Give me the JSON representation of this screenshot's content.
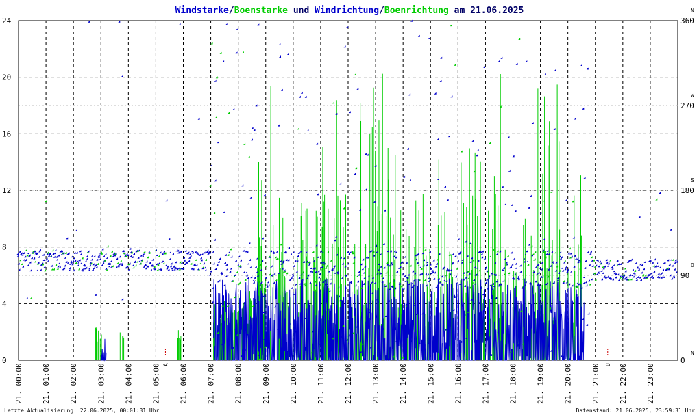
{
  "title": {
    "part1": "Windstarke",
    "sep1": "/",
    "part2": "Boenstarke",
    "part3": " und ",
    "part4": "Windrichtung",
    "sep2": "/",
    "part5": "Boenrichtung",
    "part6": " am 21.06.2025"
  },
  "colors": {
    "windstarke": "#0000cc",
    "boenstarke": "#00cc00",
    "windrichtung": "#0000cc",
    "boenrichtung": "#00cc00",
    "title_dark": "#000066",
    "marker_red": "#cc0000"
  },
  "footer": {
    "left": "Letzte Aktualisierung: 22.06.2025, 00:01:31 Uhr",
    "right": "Datenstand: 21.06.2025, 23:59:31 Uhr"
  },
  "chart_data": {
    "type": "scatter",
    "y_left_ticks": [
      "24",
      "20",
      "16",
      "12",
      "8",
      "4",
      "0"
    ],
    "y_left_range": [
      0,
      24
    ],
    "y_right_range": [
      0,
      360
    ],
    "y_right_ticks": [
      {
        "value": 360,
        "label": "360",
        "dir": "N"
      },
      {
        "value": 270,
        "label": "270",
        "dir": "W"
      },
      {
        "value": 180,
        "label": "180",
        "dir": "S"
      },
      {
        "value": 90,
        "label": "90",
        "dir": "O"
      },
      {
        "value": 0,
        "label": "0",
        "dir": "N"
      }
    ],
    "x_range_hours": [
      0,
      24
    ],
    "x_tick_labels": [
      "21. 00:00",
      "21. 01:00",
      "21. 02:00",
      "21. 03:00",
      "21. 04:00",
      "21. 05:00",
      "21. 06:00",
      "21. 07:00",
      "21. 08:00",
      "21. 09:00",
      "21. 10:00",
      "21. 11:00",
      "21. 12:00",
      "21. 13:00",
      "21. 14:00",
      "21. 15:00",
      "21. 16:00",
      "21. 17:00",
      "21. 18:00",
      "21. 19:00",
      "21. 20:00",
      "21. 21:00",
      "21. 22:00",
      "21. 23:00"
    ],
    "events": [
      {
        "hour": 5.35,
        "label": "A"
      },
      {
        "hour": 21.45,
        "label": "U"
      }
    ],
    "grid": true,
    "series": [
      {
        "name": "Windstarke",
        "kind": "line",
        "color": "#0000cc"
      },
      {
        "name": "Boenstarke",
        "kind": "bars",
        "color": "#00cc00"
      },
      {
        "name": "Windrichtung",
        "kind": "points",
        "color": "#0000cc"
      },
      {
        "name": "Boenrichtung",
        "kind": "points",
        "color": "#00cc00"
      }
    ],
    "wind_speed_segments": [
      {
        "from": 3.0,
        "to": 3.2,
        "max": 1.6
      },
      {
        "from": 7.1,
        "to": 20.6,
        "max": 5.8
      }
    ],
    "gust_speed_bursts": [
      {
        "from": 2.8,
        "to": 3.1,
        "max": 2.5
      },
      {
        "from": 3.7,
        "to": 3.85,
        "max": 2.5
      },
      {
        "from": 5.8,
        "to": 5.95,
        "max": 2.5
      },
      {
        "from": 7.1,
        "to": 8.7,
        "max": 5.0
      },
      {
        "from": 8.7,
        "to": 20.5,
        "max": 20.5
      }
    ],
    "direction_profile": [
      {
        "from": 0.0,
        "to": 7.0,
        "deg": 105
      },
      {
        "from": 7.0,
        "to": 20.9,
        "deg": 95
      },
      {
        "from": 20.9,
        "to": 24.0,
        "deg": 95
      }
    ]
  }
}
